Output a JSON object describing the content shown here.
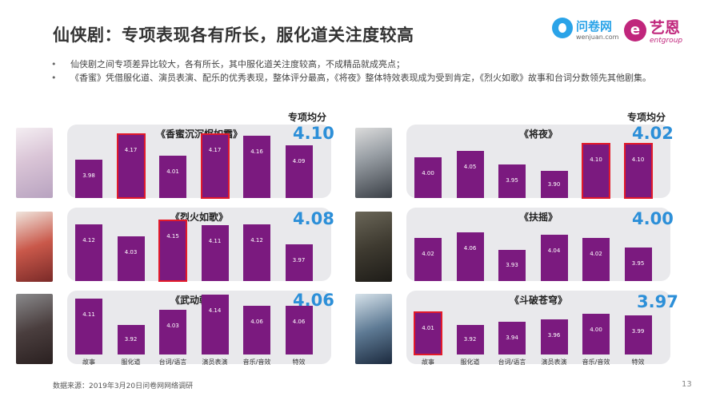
{
  "title": "仙侠剧：专项表现各有所长，服化道关注度较高",
  "logos": {
    "wenjuan": {
      "name": "问卷网",
      "sub": "wenjuan.com"
    },
    "yien": {
      "name": "艺恩",
      "sub": "entgroup"
    }
  },
  "bullets": [
    "仙侠剧之间专项差异比较大，各有所长，其中服化道关注度较高，不成精品就成亮点；",
    "《香蜜》凭借服化道、演员表演、配乐的优秀表现，整体评分最高，《将夜》整体特效表现成为受到肯定，《烈火如歌》故事和台词分数领先其他剧集。"
  ],
  "avg_label": "专项均分",
  "categories": [
    "故事",
    "服化道",
    "台词/语言",
    "演员表演",
    "音乐/音效",
    "特效"
  ],
  "source": "数据来源：2019年3月20日问卷网网络调研",
  "page_number": "13",
  "colors": {
    "bar": "#7b1a7f",
    "highlight_border": "#e21a2a",
    "avg": "#2c8fd8",
    "panel": "#e9e9ec"
  },
  "chart_data": [
    {
      "type": "bar",
      "title": "《香蜜沉沉烬如霜》",
      "average": "4.10",
      "categories": [
        "故事",
        "服化道",
        "台词/语言",
        "演员表演",
        "音乐/音效",
        "特效"
      ],
      "values": [
        3.98,
        4.17,
        4.01,
        4.17,
        4.16,
        4.09
      ],
      "highlighted": [
        1,
        3
      ],
      "ylim": [
        3.7,
        4.3
      ]
    },
    {
      "type": "bar",
      "title": "《烈火如歌》",
      "average": "4.08",
      "categories": [
        "故事",
        "服化道",
        "台词/语言",
        "演员表演",
        "音乐/音效",
        "特效"
      ],
      "values": [
        4.12,
        4.03,
        4.15,
        4.11,
        4.12,
        3.97
      ],
      "highlighted": [
        2
      ],
      "ylim": [
        3.7,
        4.3
      ]
    },
    {
      "type": "bar",
      "title": "《武动乾坤》",
      "average": "4.06",
      "categories": [
        "故事",
        "服化道",
        "台词/语言",
        "演员表演",
        "音乐/音效",
        "特效"
      ],
      "values": [
        4.11,
        3.92,
        4.03,
        4.14,
        4.06,
        4.06
      ],
      "highlighted": [],
      "ylim": [
        3.7,
        4.3
      ]
    },
    {
      "type": "bar",
      "title": "《将夜》",
      "average": "4.02",
      "categories": [
        "故事",
        "服化道",
        "台词/语言",
        "演员表演",
        "音乐/音效",
        "特效"
      ],
      "values": [
        4.0,
        4.05,
        3.95,
        3.9,
        4.1,
        4.1
      ],
      "highlighted": [
        4,
        5
      ],
      "ylim": [
        3.7,
        4.3
      ]
    },
    {
      "type": "bar",
      "title": "《扶摇》",
      "average": "4.00",
      "categories": [
        "故事",
        "服化道",
        "台词/语言",
        "演员表演",
        "音乐/音效",
        "特效"
      ],
      "values": [
        4.02,
        4.06,
        3.93,
        4.04,
        4.02,
        3.95
      ],
      "highlighted": [],
      "ylim": [
        3.7,
        4.3
      ]
    },
    {
      "type": "bar",
      "title": "《斗破苍穹》",
      "average": "3.97",
      "categories": [
        "故事",
        "服化道",
        "台词/语言",
        "演员表演",
        "音乐/音效",
        "特效"
      ],
      "values": [
        4.01,
        3.92,
        3.94,
        3.96,
        4.0,
        3.99
      ],
      "highlighted": [
        0
      ],
      "ylim": [
        3.7,
        4.3
      ]
    }
  ]
}
